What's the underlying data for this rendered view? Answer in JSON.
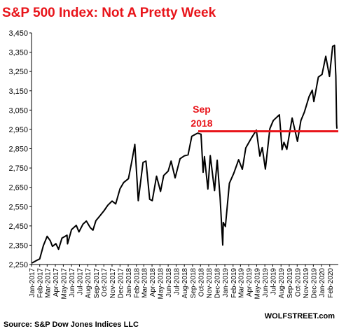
{
  "chart_data": {
    "type": "line",
    "title": "S&P 500 Index: Not A Pretty Week",
    "source": "Source: S&P Dow Jones Indices LLC",
    "brand": "WOLFSTREET.com",
    "ylim": [
      2250,
      3450
    ],
    "y_ticks": [
      "3,450",
      "3,350",
      "3,250",
      "3,150",
      "3,050",
      "2,950",
      "2,850",
      "2,750",
      "2,650",
      "2,550",
      "2,450",
      "2,350",
      "2,250"
    ],
    "y_tick_values": [
      3450,
      3350,
      3250,
      3150,
      3050,
      2950,
      2850,
      2750,
      2650,
      2550,
      2450,
      2350,
      2250
    ],
    "x_ticks": [
      "Jan-2017",
      "Feb-2017",
      "Mar-2017",
      "Apr-2017",
      "May-2017",
      "Jun-2017",
      "Jul-2017",
      "Aug-2017",
      "Sep-2017",
      "Oct-2017",
      "Nov-2017",
      "Dec-2017",
      "Jan-2018",
      "Feb-2018",
      "Mar-2018",
      "Apr-2018",
      "May-2018",
      "Jun-2018",
      "Jul-2018",
      "Aug-2018",
      "Sep-2018",
      "Oct-2018",
      "Nov-2018",
      "Dec-2018",
      "Jan-2019",
      "Feb-2019",
      "Mar-2019",
      "Apr-2019",
      "May-2019",
      "Jun-2019",
      "Jul-2019",
      "Aug-2019",
      "Sep-2019",
      "Oct-2019",
      "Nov-2019",
      "Dec-2019",
      "Jan-2020",
      "Feb-2020"
    ],
    "x_range": [
      "2017-01-01",
      "2020-02-28"
    ],
    "series": [
      {
        "color": "#000000",
        "points": [
          [
            "2017-01-03",
            2258
          ],
          [
            "2017-01-20",
            2271
          ],
          [
            "2017-02-01",
            2279
          ],
          [
            "2017-02-15",
            2349
          ],
          [
            "2017-03-01",
            2396
          ],
          [
            "2017-03-13",
            2373
          ],
          [
            "2017-03-21",
            2344
          ],
          [
            "2017-04-03",
            2358
          ],
          [
            "2017-04-13",
            2329
          ],
          [
            "2017-04-26",
            2387
          ],
          [
            "2017-05-15",
            2402
          ],
          [
            "2017-05-17",
            2357
          ],
          [
            "2017-06-01",
            2431
          ],
          [
            "2017-06-19",
            2453
          ],
          [
            "2017-06-29",
            2419
          ],
          [
            "2017-07-14",
            2459
          ],
          [
            "2017-07-27",
            2475
          ],
          [
            "2017-08-11",
            2441
          ],
          [
            "2017-08-21",
            2428
          ],
          [
            "2017-09-01",
            2477
          ],
          [
            "2017-09-15",
            2500
          ],
          [
            "2017-10-02",
            2529
          ],
          [
            "2017-10-16",
            2557
          ],
          [
            "2017-11-01",
            2579
          ],
          [
            "2017-11-15",
            2564
          ],
          [
            "2017-12-01",
            2642
          ],
          [
            "2017-12-15",
            2675
          ],
          [
            "2018-01-02",
            2695
          ],
          [
            "2018-01-15",
            2787
          ],
          [
            "2018-01-26",
            2872
          ],
          [
            "2018-02-05",
            2649
          ],
          [
            "2018-02-08",
            2581
          ],
          [
            "2018-02-26",
            2779
          ],
          [
            "2018-03-09",
            2786
          ],
          [
            "2018-03-23",
            2588
          ],
          [
            "2018-04-02",
            2581
          ],
          [
            "2018-04-18",
            2708
          ],
          [
            "2018-05-03",
            2629
          ],
          [
            "2018-05-15",
            2711
          ],
          [
            "2018-06-01",
            2734
          ],
          [
            "2018-06-12",
            2786
          ],
          [
            "2018-06-27",
            2699
          ],
          [
            "2018-07-16",
            2798
          ],
          [
            "2018-08-01",
            2813
          ],
          [
            "2018-08-15",
            2818
          ],
          [
            "2018-08-29",
            2914
          ],
          [
            "2018-09-20",
            2931
          ],
          [
            "2018-10-03",
            2925
          ],
          [
            "2018-10-11",
            2728
          ],
          [
            "2018-10-16",
            2809
          ],
          [
            "2018-10-29",
            2641
          ],
          [
            "2018-11-07",
            2814
          ],
          [
            "2018-11-23",
            2633
          ],
          [
            "2018-12-03",
            2790
          ],
          [
            "2018-12-14",
            2599
          ],
          [
            "2018-12-24",
            2351
          ],
          [
            "2018-12-26",
            2468
          ],
          [
            "2019-01-03",
            2447
          ],
          [
            "2019-01-18",
            2671
          ],
          [
            "2019-02-04",
            2724
          ],
          [
            "2019-02-22",
            2793
          ],
          [
            "2019-03-08",
            2743
          ],
          [
            "2019-03-21",
            2854
          ],
          [
            "2019-04-12",
            2907
          ],
          [
            "2019-04-30",
            2946
          ],
          [
            "2019-05-13",
            2812
          ],
          [
            "2019-05-22",
            2856
          ],
          [
            "2019-06-03",
            2744
          ],
          [
            "2019-06-20",
            2954
          ],
          [
            "2019-07-03",
            2996
          ],
          [
            "2019-07-26",
            3026
          ],
          [
            "2019-08-05",
            2845
          ],
          [
            "2019-08-12",
            2883
          ],
          [
            "2019-08-23",
            2847
          ],
          [
            "2019-09-12",
            3009
          ],
          [
            "2019-10-02",
            2888
          ],
          [
            "2019-10-15",
            2996
          ],
          [
            "2019-10-28",
            3039
          ],
          [
            "2019-11-15",
            3120
          ],
          [
            "2019-11-27",
            3153
          ],
          [
            "2019-12-03",
            3094
          ],
          [
            "2019-12-20",
            3221
          ],
          [
            "2020-01-03",
            3235
          ],
          [
            "2020-01-17",
            3329
          ],
          [
            "2020-01-31",
            3225
          ],
          [
            "2020-02-12",
            3380
          ],
          [
            "2020-02-19",
            3386
          ],
          [
            "2020-02-24",
            3225
          ],
          [
            "2020-02-27",
            2979
          ],
          [
            "2020-02-28",
            2954
          ]
        ]
      }
    ],
    "reference_line": {
      "value": 2940,
      "color": "#e8141a",
      "label_line1": "Sep",
      "label_line2": "2018"
    },
    "grid": false,
    "legend": "none"
  }
}
